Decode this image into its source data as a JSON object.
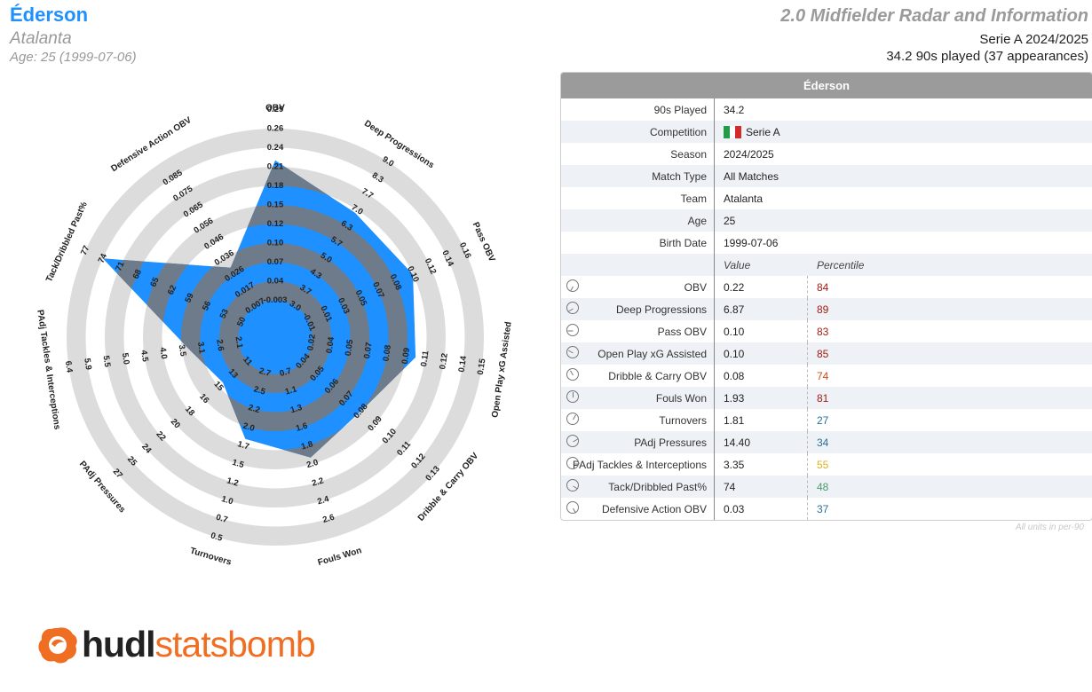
{
  "header": {
    "player": "Éderson",
    "team": "Atalanta",
    "age_line": "Age: 25 (1999-07-06)",
    "title": "2.0 Midfielder Radar and Information",
    "competition_line": "Serie A 2024/2025",
    "played_line": "34.2 90s played (37 appearances)"
  },
  "table": {
    "title": "Éderson",
    "info": [
      {
        "label": "90s Played",
        "value": "34.2"
      },
      {
        "label": "Competition",
        "value": "Serie A",
        "flag": "italy-flag-icon"
      },
      {
        "label": "Season",
        "value": "2024/2025"
      },
      {
        "label": "Match Type",
        "value": "All Matches"
      },
      {
        "label": "Team",
        "value": "Atalanta"
      },
      {
        "label": "Age",
        "value": "25"
      },
      {
        "label": "Birth Date",
        "value": "1999-07-06"
      }
    ],
    "value_header": "Value",
    "percentile_header": "Percentile",
    "metrics": [
      {
        "label": "OBV",
        "value": "0.22",
        "pct": "84",
        "color": "#a31d12"
      },
      {
        "label": "Deep Progressions",
        "value": "6.87",
        "pct": "89",
        "color": "#a31d12"
      },
      {
        "label": "Pass OBV",
        "value": "0.10",
        "pct": "83",
        "color": "#a31d12"
      },
      {
        "label": "Open Play xG Assisted",
        "value": "0.10",
        "pct": "85",
        "color": "#a31d12"
      },
      {
        "label": "Dribble & Carry OBV",
        "value": "0.08",
        "pct": "74",
        "color": "#c8501a"
      },
      {
        "label": "Fouls Won",
        "value": "1.93",
        "pct": "81",
        "color": "#a31d12"
      },
      {
        "label": "Turnovers",
        "value": "1.81",
        "pct": "27",
        "color": "#2a6f97"
      },
      {
        "label": "PAdj Pressures",
        "value": "14.40",
        "pct": "34",
        "color": "#2a6f97"
      },
      {
        "label": "PAdj Tackles & Interceptions",
        "value": "3.35",
        "pct": "55",
        "color": "#e0b020"
      },
      {
        "label": "Tack/Dribbled Past%",
        "value": "74",
        "pct": "48",
        "color": "#4a9a6a"
      },
      {
        "label": "Defensive Action OBV",
        "value": "0.03",
        "pct": "37",
        "color": "#2a6f97"
      }
    ],
    "note": "All units in per-90"
  },
  "chart_data": {
    "type": "radar",
    "colors": {
      "fill": "#1e90ff",
      "band_gray": "#6e7b8b",
      "ring": "#dcdcdc"
    },
    "axes": [
      {
        "name": "OBV",
        "ticks": [
          "-0.003",
          "0.04",
          "0.07",
          "0.10",
          "0.12",
          "0.15",
          "0.18",
          "0.21",
          "0.24",
          "0.26",
          "0.29"
        ],
        "value": 0.22
      },
      {
        "name": "Deep Progressions",
        "ticks": [
          "3.0",
          "3.7",
          "4.3",
          "5.0",
          "5.7",
          "6.3",
          "7.0",
          "7.7",
          "8.3",
          "9.0"
        ],
        "value": 6.87
      },
      {
        "name": "Pass OBV",
        "ticks": [
          "-0.01",
          "0.01",
          "0.03",
          "0.05",
          "0.07",
          "0.08",
          "0.10",
          "0.12",
          "0.14",
          "0.16"
        ],
        "value": 0.1
      },
      {
        "name": "Open Play xG Assisted",
        "ticks": [
          "0.02",
          "0.04",
          "0.05",
          "0.07",
          "0.08",
          "0.09",
          "0.11",
          "0.12",
          "0.14",
          "0.15"
        ],
        "value": 0.1
      },
      {
        "name": "Dribble & Carry OBV",
        "ticks": [
          "0.04",
          "0.05",
          "0.06",
          "0.07",
          "0.08",
          "0.09",
          "0.10",
          "0.11",
          "0.12",
          "0.13"
        ],
        "value": 0.08
      },
      {
        "name": "Fouls Won",
        "ticks": [
          "0.7",
          "1.1",
          "1.3",
          "1.6",
          "1.8",
          "2.0",
          "2.2",
          "2.4",
          "2.6"
        ],
        "value": 1.93
      },
      {
        "name": "Turnovers",
        "ticks": [
          "2.7",
          "2.5",
          "2.2",
          "2.0",
          "1.7",
          "1.5",
          "1.2",
          "1.0",
          "0.7",
          "0.5"
        ],
        "value": 1.81
      },
      {
        "name": "PAdj Pressures",
        "ticks": [
          "11",
          "13",
          "15",
          "16",
          "18",
          "20",
          "22",
          "24",
          "25",
          "27"
        ],
        "value": 14.4
      },
      {
        "name": "PAdj Tackles & Interceptions",
        "ticks": [
          "2.1",
          "2.6",
          "3.1",
          "3.5",
          "4.0",
          "4.5",
          "5.0",
          "5.5",
          "5.9",
          "6.4"
        ],
        "value": 3.35
      },
      {
        "name": "Tack/Dribbled Past%",
        "ticks": [
          "50",
          "53",
          "56",
          "59",
          "62",
          "65",
          "68",
          "71",
          "74",
          "77"
        ],
        "value": 74
      },
      {
        "name": "Defensive Action OBV",
        "ticks": [
          "0.007",
          "0.017",
          "0.026",
          "0.036",
          "0.046",
          "0.056",
          "0.065",
          "0.075",
          "0.085"
        ],
        "value": 0.03
      }
    ]
  },
  "logo": {
    "part1": "hudl",
    "part2": "statsbomb"
  }
}
